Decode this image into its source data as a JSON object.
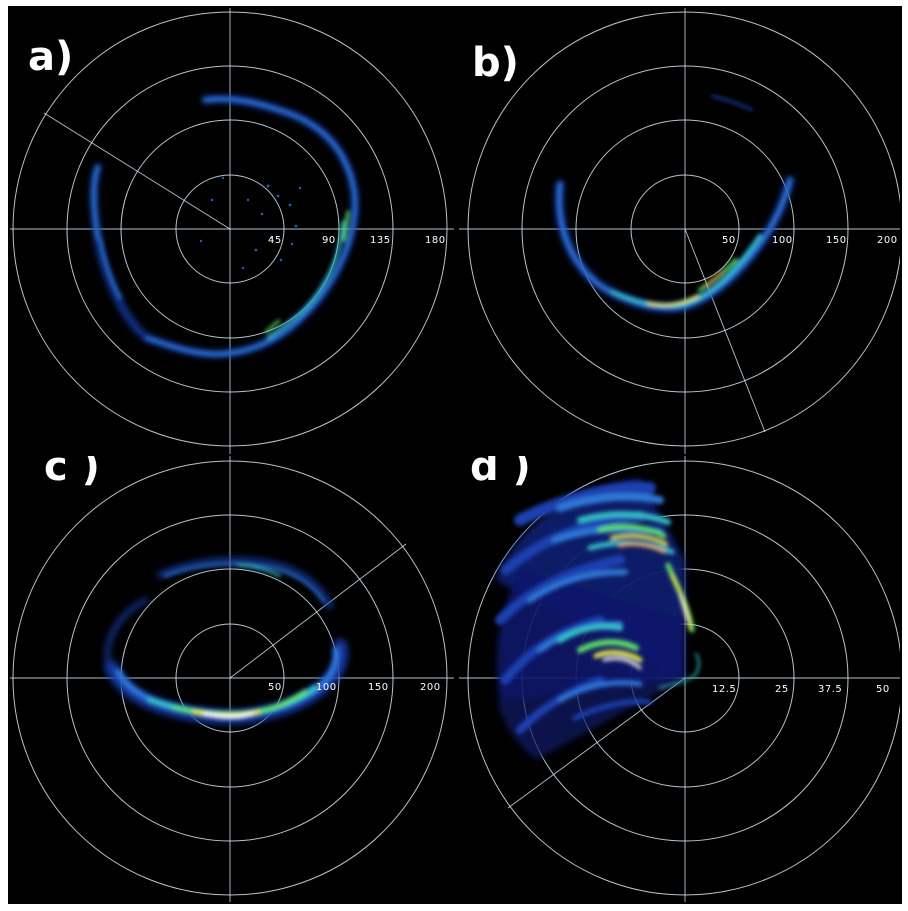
{
  "figure": {
    "background": "#000000",
    "frame": "#ffffff",
    "colormap": [
      "#0a1a6b",
      "#1a3fb0",
      "#2f77d6",
      "#35c0c8",
      "#5fe06a",
      "#e7e84a",
      "#f4a23a",
      "#ffffff"
    ],
    "panels": [
      {
        "id": "a",
        "label": "a)",
        "ring_labels": [
          "45",
          "90",
          "135",
          "180"
        ],
        "bearing_line": "upper-left",
        "echo_shape": "closed-loop"
      },
      {
        "id": "b",
        "label": "b)",
        "ring_labels": [
          "50",
          "100",
          "150",
          "200"
        ],
        "bearing_line": "lower-right",
        "echo_shape": "lower-arc"
      },
      {
        "id": "c",
        "label": "c )",
        "ring_labels": [
          "50",
          "100",
          "150",
          "200"
        ],
        "bearing_line": "upper-right",
        "echo_shape": "oval-strong-bottom"
      },
      {
        "id": "d",
        "label": "d )",
        "ring_labels": [
          "12.5",
          "25",
          "37.5",
          "50"
        ],
        "bearing_line": "lower-left",
        "echo_shape": "fan-spread"
      }
    ]
  }
}
